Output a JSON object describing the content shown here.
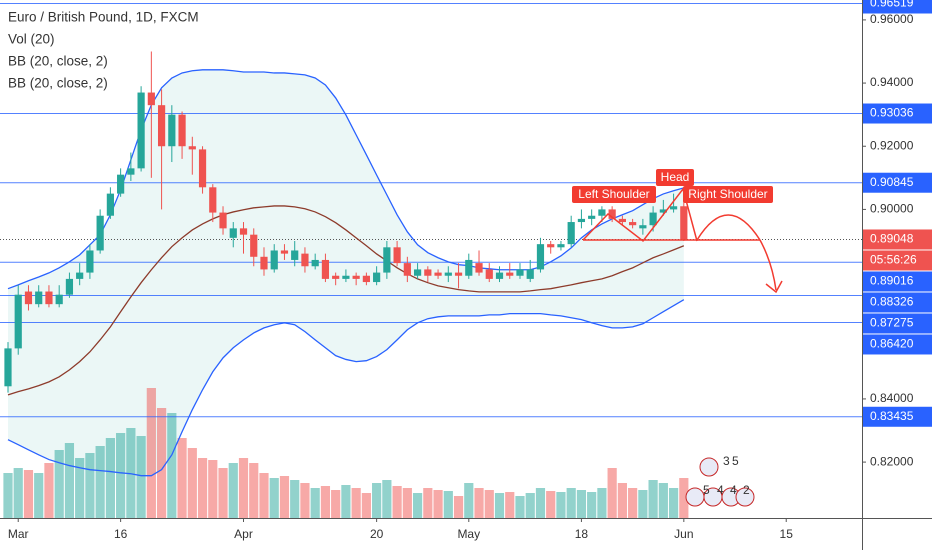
{
  "chart_data": {
    "type": "candlestick",
    "title": "Euro / British Pound, 1D, FXCM",
    "indicators": [
      "Vol (20)",
      "BB (20, close, 2)",
      "BB (20, close, 2)"
    ],
    "ylim": [
      0.8023,
      0.9663
    ],
    "yticks": [
      {
        "value": 0.96,
        "label": "0.96000"
      },
      {
        "value": 0.94,
        "label": "0.94000"
      },
      {
        "value": 0.92,
        "label": "0.92000"
      },
      {
        "value": 0.9,
        "label": "0.90000"
      },
      {
        "value": 0.84,
        "label": "0.84000"
      },
      {
        "value": 0.82,
        "label": "0.82000"
      }
    ],
    "xlim": [
      -0.78,
      83.4
    ],
    "xticks": [
      {
        "value": 1,
        "label": "Mar"
      },
      {
        "value": 11,
        "label": "16"
      },
      {
        "value": 23,
        "label": "Apr"
      },
      {
        "value": 36,
        "label": "20"
      },
      {
        "value": 45,
        "label": "May"
      },
      {
        "value": 56,
        "label": "18"
      },
      {
        "value": 66,
        "label": "Jun"
      },
      {
        "value": 76,
        "label": "15"
      }
    ],
    "up_color": "#26a69a",
    "down_color": "#ef5350",
    "open": [
      0.844,
      0.856,
      0.874,
      0.87,
      0.874,
      0.87,
      0.873,
      0.878,
      0.88,
      0.887,
      0.898,
      0.905,
      0.911,
      0.913,
      0.937,
      0.933,
      0.92,
      0.93,
      0.92,
      0.919,
      0.907,
      0.899,
      0.891,
      0.894,
      0.892,
      0.885,
      0.881,
      0.887,
      0.884,
      0.886,
      0.882,
      0.884,
      0.879,
      0.878,
      0.879,
      0.879,
      0.877,
      0.88,
      0.888,
      0.883,
      0.879,
      0.881,
      0.88,
      0.879,
      0.88,
      0.879,
      0.883,
      0.881,
      0.878,
      0.88,
      0.879,
      0.878,
      0.881,
      0.889,
      0.888,
      0.889,
      0.896,
      0.897,
      0.898,
      0.9,
      0.897,
      0.896,
      0.894,
      0.895,
      0.899,
      0.9,
      0.901
    ],
    "high": [
      0.858,
      0.876,
      0.876,
      0.876,
      0.876,
      0.876,
      0.88,
      0.883,
      0.889,
      0.9,
      0.907,
      0.913,
      0.918,
      0.939,
      0.95,
      0.938,
      0.933,
      0.931,
      0.923,
      0.92,
      0.908,
      0.901,
      0.896,
      0.896,
      0.894,
      0.888,
      0.889,
      0.889,
      0.89,
      0.888,
      0.886,
      0.886,
      0.88,
      0.881,
      0.88,
      0.88,
      0.882,
      0.89,
      0.89,
      0.885,
      0.883,
      0.882,
      0.881,
      0.882,
      0.883,
      0.886,
      0.887,
      0.883,
      0.882,
      0.883,
      0.883,
      0.884,
      0.891,
      0.89,
      0.89,
      0.898,
      0.9,
      0.9,
      0.901,
      0.901,
      0.898,
      0.897,
      0.897,
      0.901,
      0.903,
      0.905,
      0.903
    ],
    "low": [
      0.842,
      0.854,
      0.868,
      0.869,
      0.869,
      0.869,
      0.872,
      0.876,
      0.878,
      0.886,
      0.897,
      0.904,
      0.909,
      0.912,
      0.91,
      0.9,
      0.915,
      0.916,
      0.911,
      0.905,
      0.896,
      0.892,
      0.888,
      0.886,
      0.882,
      0.879,
      0.88,
      0.884,
      0.882,
      0.88,
      0.881,
      0.877,
      0.876,
      0.877,
      0.876,
      0.876,
      0.876,
      0.878,
      0.882,
      0.877,
      0.878,
      0.877,
      0.878,
      0.877,
      0.875,
      0.878,
      0.879,
      0.877,
      0.877,
      0.878,
      0.878,
      0.877,
      0.88,
      0.886,
      0.887,
      0.888,
      0.894,
      0.895,
      0.896,
      0.896,
      0.895,
      0.894,
      0.892,
      0.893,
      0.898,
      0.899,
      0.89
    ],
    "close": [
      0.856,
      0.873,
      0.87,
      0.874,
      0.87,
      0.873,
      0.878,
      0.88,
      0.887,
      0.898,
      0.905,
      0.911,
      0.913,
      0.937,
      0.933,
      0.92,
      0.93,
      0.92,
      0.919,
      0.907,
      0.899,
      0.894,
      0.894,
      0.892,
      0.885,
      0.881,
      0.887,
      0.886,
      0.887,
      0.882,
      0.884,
      0.878,
      0.878,
      0.879,
      0.878,
      0.877,
      0.88,
      0.888,
      0.883,
      0.879,
      0.881,
      0.879,
      0.879,
      0.88,
      0.879,
      0.884,
      0.88,
      0.878,
      0.88,
      0.879,
      0.881,
      0.881,
      0.889,
      0.888,
      0.889,
      0.896,
      0.897,
      0.898,
      0.9,
      0.897,
      0.896,
      0.895,
      0.895,
      0.899,
      0.9,
      0.901,
      0.8905
    ],
    "volume": [
      45,
      50,
      48,
      45,
      55,
      68,
      75,
      60,
      65,
      72,
      80,
      85,
      90,
      82,
      130,
      110,
      105,
      80,
      70,
      60,
      58,
      50,
      55,
      60,
      55,
      45,
      40,
      42,
      38,
      35,
      30,
      32,
      28,
      33,
      30,
      25,
      35,
      38,
      32,
      30,
      25,
      30,
      28,
      27,
      22,
      35,
      30,
      28,
      25,
      26,
      22,
      25,
      30,
      27,
      26,
      30,
      28,
      26,
      30,
      50,
      35,
      30,
      28,
      38,
      35,
      30,
      40
    ],
    "bb_upper": [
      0.8749,
      0.8761,
      0.8774,
      0.8786,
      0.8799,
      0.8815,
      0.8834,
      0.8856,
      0.8888,
      0.892,
      0.8983,
      0.9062,
      0.9157,
      0.9252,
      0.9331,
      0.9385,
      0.9416,
      0.9432,
      0.9439,
      0.9442,
      0.9442,
      0.9442,
      0.9439,
      0.9435,
      0.9435,
      0.9435,
      0.9432,
      0.9432,
      0.9429,
      0.9426,
      0.9416,
      0.9394,
      0.9353,
      0.9299,
      0.9236,
      0.9173,
      0.9109,
      0.9046,
      0.8983,
      0.8929,
      0.8888,
      0.8863,
      0.8847,
      0.8834,
      0.8825,
      0.8822,
      0.8815,
      0.8812,
      0.8809,
      0.8809,
      0.8809,
      0.8809,
      0.8818,
      0.8834,
      0.8853,
      0.8878,
      0.891,
      0.8935,
      0.8954,
      0.897,
      0.8983,
      0.8996,
      0.9015,
      0.9034,
      0.9049,
      0.9059,
      0.9068
    ],
    "bb_lower": [
      0.8271,
      0.8255,
      0.8239,
      0.8223,
      0.8208,
      0.8198,
      0.8189,
      0.8182,
      0.8176,
      0.8173,
      0.817,
      0.8166,
      0.8163,
      0.8157,
      0.8157,
      0.8176,
      0.8223,
      0.8296,
      0.8366,
      0.8429,
      0.8486,
      0.853,
      0.8562,
      0.8587,
      0.8609,
      0.8625,
      0.8635,
      0.8641,
      0.8635,
      0.8613,
      0.8587,
      0.8562,
      0.8537,
      0.8525,
      0.8518,
      0.8521,
      0.8534,
      0.8556,
      0.8587,
      0.8619,
      0.8641,
      0.8654,
      0.866,
      0.8663,
      0.8663,
      0.8663,
      0.8663,
      0.8666,
      0.8666,
      0.867,
      0.867,
      0.867,
      0.867,
      0.8666,
      0.8663,
      0.8657,
      0.8651,
      0.8641,
      0.8632,
      0.8625,
      0.8625,
      0.8628,
      0.8638,
      0.8657,
      0.8676,
      0.8695,
      0.8714
    ],
    "bb_basis": [
      0.8413,
      0.8423,
      0.8432,
      0.8442,
      0.8454,
      0.847,
      0.8492,
      0.8518,
      0.8549,
      0.8587,
      0.8628,
      0.8676,
      0.8723,
      0.8768,
      0.8809,
      0.8847,
      0.8882,
      0.891,
      0.8935,
      0.8954,
      0.897,
      0.8983,
      0.8992,
      0.8999,
      0.9005,
      0.9008,
      0.9011,
      0.9011,
      0.9008,
      0.9002,
      0.8992,
      0.8977,
      0.8958,
      0.8935,
      0.891,
      0.8885,
      0.8859,
      0.8837,
      0.8815,
      0.8796,
      0.878,
      0.8768,
      0.8758,
      0.8752,
      0.8746,
      0.8742,
      0.8739,
      0.8739,
      0.8739,
      0.8739,
      0.8739,
      0.8742,
      0.8746,
      0.8749,
      0.8755,
      0.8761,
      0.8768,
      0.8774,
      0.878,
      0.879,
      0.8803,
      0.8815,
      0.8831,
      0.8847,
      0.8859,
      0.8872,
      0.8885
    ],
    "band_color": "#2962ff",
    "basis_color": "#8d3b2b",
    "price_labels": [
      {
        "value": 0.96519,
        "label": "0.96519",
        "style": "solid",
        "color": "#2962ff"
      },
      {
        "value": 0.93036,
        "label": "0.93036",
        "style": "solid",
        "color": "#2962ff"
      },
      {
        "value": 0.90845,
        "label": "0.90845",
        "style": "solid",
        "color": "#2962ff"
      },
      {
        "value": 0.89048,
        "label": "0.89048",
        "style": "dotted",
        "color": "#ef5350"
      },
      {
        "value": 0.89016,
        "label": "0.89016",
        "style": "none",
        "color": "#2962ff"
      },
      {
        "value": 0.88326,
        "label": "0.88326",
        "style": "solid",
        "color": "#2962ff"
      },
      {
        "value": 0.87275,
        "label": "0.87275",
        "style": "solid",
        "color": "#2962ff"
      },
      {
        "value": 0.8642,
        "label": "0.86420",
        "style": "solid",
        "color": "#2962ff"
      },
      {
        "value": 0.83435,
        "label": "0.83435",
        "style": "solid",
        "color": "#2962ff"
      }
    ],
    "countdown": "05:56:26",
    "annotations": [
      "Left Shoulder",
      "Head",
      "Right Shoulder"
    ],
    "event_badges": [
      "3",
      "5",
      "5",
      "4",
      "4",
      "2"
    ]
  }
}
